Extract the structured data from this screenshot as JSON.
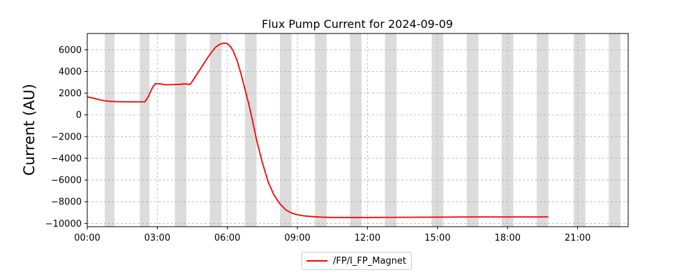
{
  "chart_data": {
    "type": "line",
    "title": "Flux Pump Current for 2024-09-09",
    "xlabel": "",
    "ylabel": "Current (AU)",
    "xlim": [
      "00:00",
      "23:10"
    ],
    "ylim": [
      -10300,
      7500
    ],
    "x_ticks": [
      "00:00",
      "03:00",
      "06:00",
      "09:00",
      "12:00",
      "15:00",
      "18:00",
      "21:00"
    ],
    "y_ticks": [
      6000,
      4000,
      2000,
      0,
      -2000,
      -4000,
      -6000,
      -8000,
      -10000
    ],
    "y_tick_labels": [
      "6000",
      "4000",
      "2000",
      "0",
      "−2000",
      "−4000",
      "−6000",
      "−8000",
      "−10000"
    ],
    "grid": true,
    "legend_position": "below",
    "shaded_intervals": [
      [
        "00:45",
        "01:10"
      ],
      [
        "02:15",
        "02:40"
      ],
      [
        "03:45",
        "04:15"
      ],
      [
        "05:15",
        "05:45"
      ],
      [
        "06:45",
        "07:15"
      ],
      [
        "08:15",
        "08:45"
      ],
      [
        "09:45",
        "10:15"
      ],
      [
        "11:15",
        "11:45"
      ],
      [
        "12:45",
        "13:15"
      ],
      [
        "14:45",
        "15:15"
      ],
      [
        "16:15",
        "16:45"
      ],
      [
        "17:45",
        "18:15"
      ],
      [
        "19:15",
        "19:45"
      ],
      [
        "20:50",
        "21:20"
      ],
      [
        "22:20",
        "22:50"
      ]
    ],
    "shade_color": "#dcdcdc",
    "series": [
      {
        "name": "/FP/I_FP_Magnet",
        "color": "#ff0000",
        "x": [
          "00:00",
          "00:15",
          "00:30",
          "00:45",
          "01:00",
          "01:15",
          "01:30",
          "01:45",
          "02:00",
          "02:10",
          "02:20",
          "02:28",
          "02:37",
          "02:42",
          "02:48",
          "02:55",
          "03:05",
          "03:10",
          "03:20",
          "03:40",
          "04:00",
          "04:10",
          "04:20",
          "04:25",
          "04:30",
          "04:40",
          "04:50",
          "05:00",
          "05:10",
          "05:20",
          "05:30",
          "05:40",
          "05:50",
          "05:55",
          "06:00",
          "06:08",
          "06:15",
          "06:25",
          "06:35",
          "06:45",
          "06:55",
          "07:05",
          "07:15",
          "07:30",
          "07:45",
          "08:00",
          "08:15",
          "08:30",
          "08:45",
          "09:00",
          "09:15",
          "09:30",
          "10:00",
          "10:30",
          "11:00",
          "12:00",
          "13:00",
          "14:00",
          "15:00",
          "16:00",
          "17:00",
          "18:00",
          "19:00",
          "19:45"
        ],
        "y": [
          1650,
          1550,
          1400,
          1300,
          1250,
          1220,
          1210,
          1200,
          1200,
          1200,
          1200,
          1200,
          1700,
          2100,
          2550,
          2880,
          2870,
          2850,
          2780,
          2790,
          2820,
          2860,
          2820,
          2820,
          3100,
          3650,
          4200,
          4750,
          5300,
          5800,
          6250,
          6500,
          6600,
          6600,
          6550,
          6300,
          5900,
          5000,
          3800,
          2400,
          1000,
          -600,
          -2300,
          -4400,
          -6200,
          -7400,
          -8200,
          -8750,
          -9050,
          -9200,
          -9300,
          -9350,
          -9420,
          -9450,
          -9450,
          -9450,
          -9440,
          -9430,
          -9420,
          -9410,
          -9400,
          -9400,
          -9400,
          -9400
        ]
      }
    ]
  }
}
